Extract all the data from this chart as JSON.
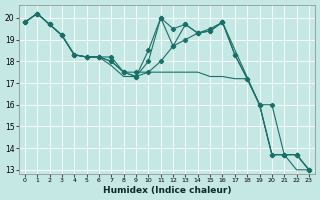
{
  "xlabel": "Humidex (Indice chaleur)",
  "background_color": "#c5e8e4",
  "grid_color": "#ffffff",
  "line_color": "#1a7068",
  "xlim": [
    -0.5,
    23.5
  ],
  "ylim": [
    12.8,
    20.6
  ],
  "xticks": [
    0,
    1,
    2,
    3,
    4,
    5,
    6,
    7,
    8,
    9,
    10,
    11,
    12,
    13,
    14,
    15,
    16,
    17,
    18,
    19,
    20,
    21,
    22,
    23
  ],
  "yticks": [
    13,
    14,
    15,
    16,
    17,
    18,
    19,
    20
  ],
  "lines": [
    {
      "x": [
        0,
        1,
        2,
        3,
        4,
        5,
        6,
        7,
        8,
        9,
        10,
        11,
        12,
        13,
        14,
        15,
        16,
        17,
        18,
        19,
        20,
        21,
        22,
        23
      ],
      "y": [
        19.8,
        20.2,
        19.7,
        19.2,
        18.3,
        18.2,
        18.2,
        17.8,
        17.3,
        17.3,
        17.5,
        17.5,
        17.5,
        17.5,
        17.5,
        17.3,
        17.3,
        17.2,
        17.2,
        16.0,
        13.7,
        13.7,
        13.0,
        13.0
      ],
      "has_markers": false
    },
    {
      "x": [
        0,
        1,
        2,
        3,
        4,
        5,
        6,
        7,
        8,
        9,
        10,
        11,
        12,
        13,
        14,
        15,
        16,
        19,
        20,
        21,
        22,
        23
      ],
      "y": [
        19.8,
        20.2,
        19.7,
        19.2,
        18.3,
        18.2,
        18.2,
        18.2,
        17.5,
        17.5,
        17.5,
        18.0,
        18.7,
        19.0,
        19.3,
        19.4,
        19.8,
        16.0,
        16.0,
        13.7,
        13.7,
        13.0
      ],
      "has_markers": true
    },
    {
      "x": [
        0,
        1,
        2,
        3,
        4,
        5,
        6,
        7,
        8,
        9,
        10,
        11,
        12,
        13,
        14,
        15,
        16,
        17,
        18,
        19,
        20,
        21,
        22,
        23
      ],
      "y": [
        19.8,
        20.2,
        19.7,
        19.2,
        18.3,
        18.2,
        18.2,
        18.0,
        17.5,
        17.3,
        18.5,
        20.0,
        18.7,
        19.7,
        19.3,
        19.5,
        19.8,
        18.3,
        17.2,
        16.0,
        13.7,
        13.7,
        13.7,
        13.0
      ],
      "has_markers": true
    },
    {
      "x": [
        0,
        1,
        2,
        3,
        4,
        5,
        6,
        7,
        8,
        9,
        10,
        11,
        12,
        13,
        14,
        15,
        16,
        17,
        18,
        19,
        20,
        21,
        22,
        23
      ],
      "y": [
        19.8,
        20.2,
        19.7,
        19.2,
        18.3,
        18.2,
        18.2,
        18.0,
        17.5,
        17.3,
        18.0,
        20.0,
        19.5,
        19.7,
        19.3,
        19.4,
        19.8,
        18.3,
        17.2,
        16.0,
        13.7,
        13.7,
        13.7,
        13.0
      ],
      "has_markers": true
    }
  ]
}
